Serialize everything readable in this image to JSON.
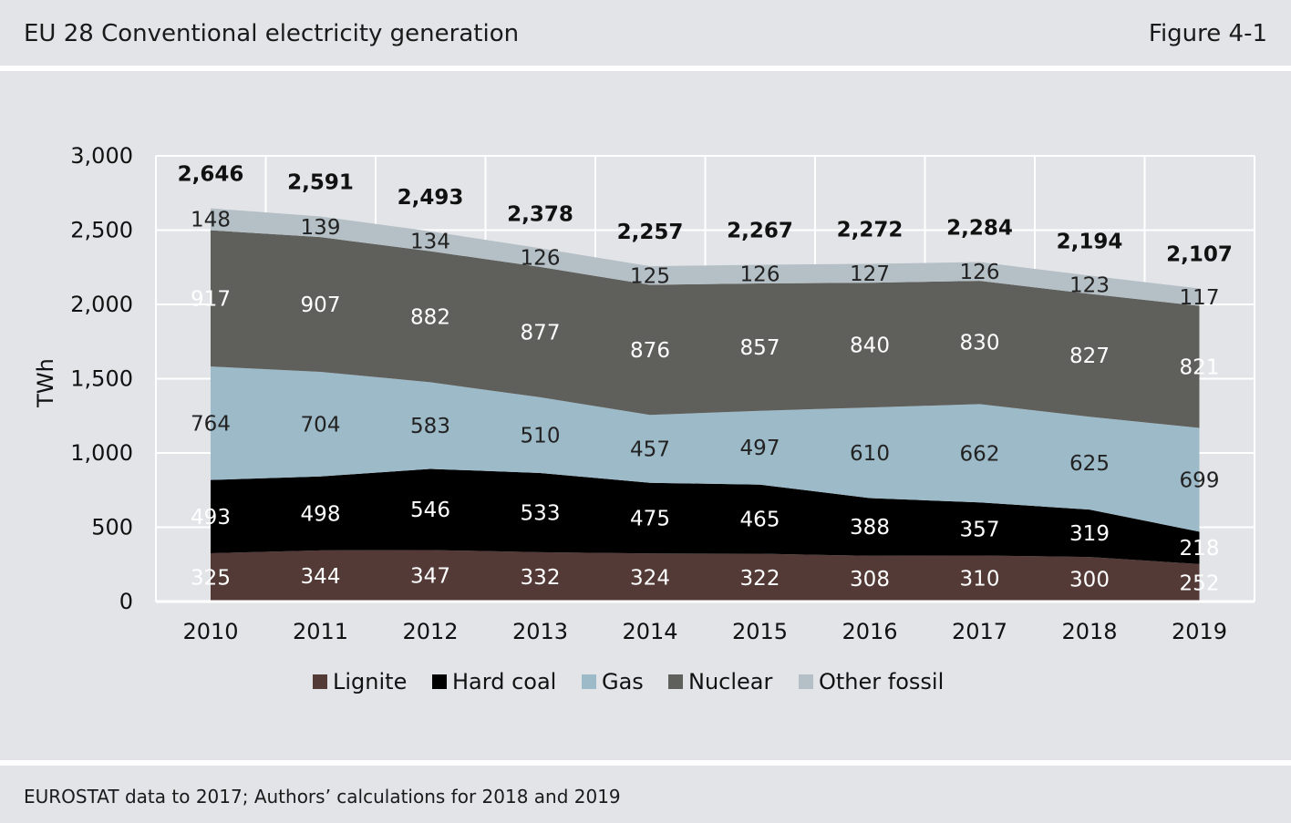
{
  "header": {
    "title": "EU 28 Conventional electricity generation",
    "figure_label": "Figure 4-1"
  },
  "footer": {
    "source": "EUROSTAT data to 2017; Authors’ calculations for 2018 and 2019"
  },
  "colors": {
    "background": "#e3e4e8",
    "lignite": "#533a36",
    "hard_coal": "#000000",
    "gas": "#9dbac9",
    "nuclear": "#5f605b",
    "other_fossil": "#b4bfc6"
  },
  "chart_data": {
    "type": "area",
    "stacked": true,
    "title": "EU 28 Conventional electricity generation",
    "xlabel": "",
    "ylabel": "TWh",
    "ylim": [
      0,
      3000
    ],
    "yticks": [
      "0",
      "500",
      "1,000",
      "1,500",
      "2,000",
      "2,500",
      "3,000"
    ],
    "grid": true,
    "legend_position": "bottom",
    "categories": [
      "2010",
      "2011",
      "2012",
      "2013",
      "2014",
      "2015",
      "2016",
      "2017",
      "2018",
      "2019"
    ],
    "series": [
      {
        "name": "Lignite",
        "color": "#533a36",
        "label_color": "#ffffff",
        "values": [
          325,
          344,
          347,
          332,
          324,
          322,
          308,
          310,
          300,
          252
        ]
      },
      {
        "name": "Hard coal",
        "color": "#000000",
        "label_color": "#ffffff",
        "values": [
          493,
          498,
          546,
          533,
          475,
          465,
          388,
          357,
          319,
          218
        ]
      },
      {
        "name": "Gas",
        "color": "#9dbac9",
        "label_color": "#222222",
        "values": [
          764,
          704,
          583,
          510,
          457,
          497,
          610,
          662,
          625,
          699
        ]
      },
      {
        "name": "Nuclear",
        "color": "#5f605b",
        "label_color": "#ffffff",
        "values": [
          917,
          907,
          882,
          877,
          876,
          857,
          840,
          830,
          827,
          821
        ]
      },
      {
        "name": "Other fossil",
        "color": "#b4bfc6",
        "label_color": "#222222",
        "values": [
          148,
          139,
          134,
          126,
          125,
          126,
          127,
          126,
          123,
          117
        ]
      }
    ],
    "totals": [
      "2,646",
      "2,591",
      "2,493",
      "2,378",
      "2,257",
      "2,267",
      "2,272",
      "2,284",
      "2,194",
      "2,107"
    ]
  }
}
